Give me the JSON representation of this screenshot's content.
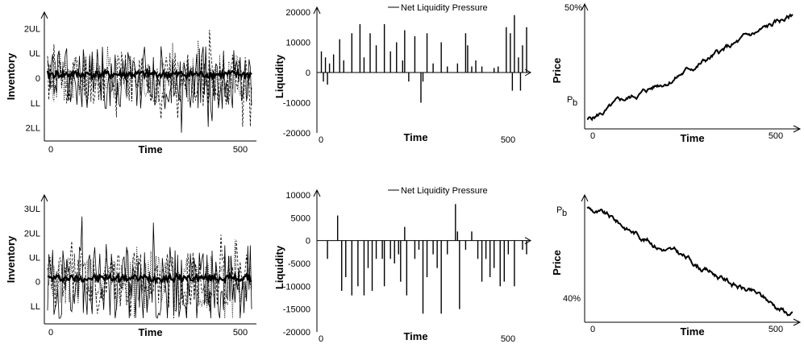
{
  "chart_data": [
    {
      "type": "line",
      "panel": "inventory-top",
      "xlabel": "Time",
      "ylabel": "Inventory",
      "x_ticks": [
        "0",
        "500"
      ],
      "y_ticks": [
        "2UL",
        "UL",
        "0",
        "LL",
        "2LL"
      ],
      "xlim": [
        0,
        500
      ],
      "ylim": [
        -2.4,
        2.4
      ],
      "series": [
        {
          "style": "dashed",
          "amplitude": 1.1,
          "seed": 11
        },
        {
          "style": "dotted",
          "amplitude": 1.0,
          "seed": 23
        },
        {
          "style": "solid",
          "amplitude": 1.3,
          "seed": 37
        },
        {
          "style": "thick",
          "amplitude": 0.15,
          "seed": 41
        }
      ]
    },
    {
      "type": "bar",
      "panel": "liquidity-top",
      "xlabel": "Time",
      "ylabel": "Liquidity",
      "legend": "Net Liquidity Pressure",
      "x_ticks": [
        "0",
        "500"
      ],
      "y_ticks": [
        "20000",
        "10000",
        "0",
        "-10000",
        "-20000"
      ],
      "xlim": [
        0,
        500
      ],
      "ylim": [
        -20000,
        20000
      ],
      "spikes": [
        [
          5,
          7000
        ],
        [
          10,
          -3000
        ],
        [
          15,
          5000
        ],
        [
          20,
          -4000
        ],
        [
          25,
          3000
        ],
        [
          35,
          6000
        ],
        [
          50,
          11000
        ],
        [
          60,
          4000
        ],
        [
          80,
          13000
        ],
        [
          100,
          16000
        ],
        [
          110,
          5000
        ],
        [
          125,
          13000
        ],
        [
          140,
          9000
        ],
        [
          160,
          16000
        ],
        [
          175,
          7000
        ],
        [
          190,
          10000
        ],
        [
          205,
          4000
        ],
        [
          210,
          14000
        ],
        [
          220,
          -3000
        ],
        [
          235,
          12000
        ],
        [
          250,
          -10000
        ],
        [
          255,
          -3000
        ],
        [
          265,
          13000
        ],
        [
          280,
          3000
        ],
        [
          300,
          10000
        ],
        [
          315,
          2000
        ],
        [
          340,
          3000
        ],
        [
          360,
          13000
        ],
        [
          365,
          9000
        ],
        [
          375,
          2000
        ],
        [
          385,
          4000
        ],
        [
          400,
          2000
        ],
        [
          430,
          1500
        ],
        [
          440,
          2000
        ],
        [
          460,
          15000
        ],
        [
          470,
          13000
        ],
        [
          475,
          -6000
        ],
        [
          480,
          19000
        ],
        [
          490,
          5000
        ],
        [
          495,
          -6000
        ],
        [
          500,
          9000
        ],
        [
          510,
          15000
        ]
      ]
    },
    {
      "type": "line",
      "panel": "price-top",
      "xlabel": "Time",
      "ylabel": "Price",
      "x_ticks": [
        "0",
        "500"
      ],
      "y_tick_top": "50%",
      "y_tick_bottom_base": "P",
      "y_tick_bottom_sub": "b",
      "xlim": [
        0,
        500
      ],
      "ylim": [
        0,
        1
      ],
      "start": 0.0,
      "end": 1.0,
      "seed": 5
    },
    {
      "type": "line",
      "panel": "inventory-bottom",
      "xlabel": "Time",
      "ylabel": "Inventory",
      "x_ticks": [
        "0",
        "500"
      ],
      "y_ticks": [
        "3UL",
        "2UL",
        "UL",
        "0",
        "LL"
      ],
      "xlim": [
        0,
        500
      ],
      "ylim": [
        -1.6,
        3.3
      ],
      "series": [
        {
          "style": "dashed",
          "amplitude": 1.2,
          "seed": 61
        },
        {
          "style": "dotted",
          "amplitude": 1.1,
          "seed": 73
        },
        {
          "style": "solid",
          "amplitude": 1.5,
          "seed": 89
        },
        {
          "style": "thick",
          "amplitude": 0.15,
          "seed": 97
        }
      ]
    },
    {
      "type": "bar",
      "panel": "liquidity-bottom",
      "xlabel": "Time",
      "ylabel": "Liquidity",
      "legend": "Net Liquidity Pressure",
      "x_ticks": [
        "0",
        "500"
      ],
      "y_ticks": [
        "10000",
        "5000",
        "0",
        "-5000",
        "-10000",
        "-15000",
        "-20000"
      ],
      "xlim": [
        0,
        500
      ],
      "ylim": [
        -20000,
        10000
      ],
      "spikes": [
        [
          20,
          -4000
        ],
        [
          45,
          5500
        ],
        [
          55,
          -11000
        ],
        [
          65,
          -8000
        ],
        [
          80,
          -12000
        ],
        [
          95,
          -10000
        ],
        [
          110,
          -12000
        ],
        [
          120,
          -6000
        ],
        [
          130,
          -11000
        ],
        [
          140,
          -4000
        ],
        [
          155,
          -4000
        ],
        [
          160,
          -10000
        ],
        [
          175,
          -4000
        ],
        [
          185,
          -5000
        ],
        [
          195,
          -3000
        ],
        [
          200,
          -9000
        ],
        [
          210,
          3000
        ],
        [
          215,
          -12000
        ],
        [
          235,
          -4000
        ],
        [
          245,
          -2000
        ],
        [
          255,
          -16000
        ],
        [
          265,
          -8000
        ],
        [
          280,
          -3000
        ],
        [
          290,
          -6000
        ],
        [
          300,
          -16000
        ],
        [
          315,
          -3000
        ],
        [
          335,
          8000
        ],
        [
          340,
          2000
        ],
        [
          345,
          -15000
        ],
        [
          360,
          -2000
        ],
        [
          375,
          2000
        ],
        [
          390,
          -4000
        ],
        [
          400,
          -9000
        ],
        [
          410,
          -4000
        ],
        [
          420,
          -8000
        ],
        [
          430,
          -6000
        ],
        [
          445,
          -10000
        ],
        [
          455,
          -9000
        ],
        [
          465,
          -3000
        ],
        [
          480,
          -10000
        ],
        [
          500,
          -2000
        ],
        [
          510,
          -3000
        ]
      ]
    },
    {
      "type": "line",
      "panel": "price-bottom",
      "xlabel": "Time",
      "ylabel": "Price",
      "x_ticks": [
        "0",
        "500"
      ],
      "y_tick_top_base": "P",
      "y_tick_top_sub": "b",
      "y_tick_bottom": "40%",
      "xlim": [
        0,
        500
      ],
      "ylim": [
        0,
        1
      ],
      "start": 1.0,
      "end": 0.0,
      "seed": 9
    }
  ]
}
